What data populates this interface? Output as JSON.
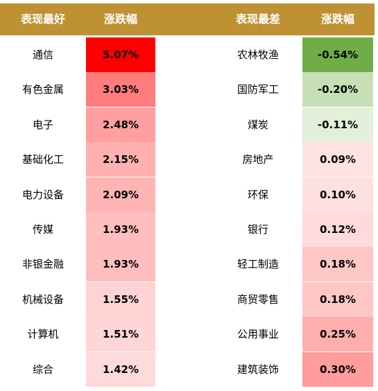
{
  "chart_data": {
    "type": "table",
    "headers": {
      "best_name": "表现最好",
      "best_value": "涨跌幅",
      "worst_name": "表现最差",
      "worst_value": "涨跌幅"
    },
    "best": [
      {
        "name": "通信",
        "value": "5.07%",
        "color": "#ff0000"
      },
      {
        "name": "有色金属",
        "value": "3.03%",
        "color": "#ff7c7c"
      },
      {
        "name": "电子",
        "value": "2.48%",
        "color": "#ff9f9f"
      },
      {
        "name": "基础化工",
        "value": "2.15%",
        "color": "#ffb1b1"
      },
      {
        "name": "电力设备",
        "value": "2.09%",
        "color": "#ffb4b4"
      },
      {
        "name": "传媒",
        "value": "1.93%",
        "color": "#ffbdbd"
      },
      {
        "name": "非银金融",
        "value": "1.93%",
        "color": "#ffbdbd"
      },
      {
        "name": "机械设备",
        "value": "1.55%",
        "color": "#ffd3d3"
      },
      {
        "name": "计算机",
        "value": "1.51%",
        "color": "#ffd5d5"
      },
      {
        "name": "综合",
        "value": "1.42%",
        "color": "#ffdada"
      }
    ],
    "worst": [
      {
        "name": "农林牧渔",
        "value": "-0.54%",
        "color": "#70ad47"
      },
      {
        "name": "国防军工",
        "value": "-0.20%",
        "color": "#c6dfb5"
      },
      {
        "name": "煤炭",
        "value": "-0.11%",
        "color": "#e2efd9"
      },
      {
        "name": "房地产",
        "value": "0.09%",
        "color": "#ffe3e3"
      },
      {
        "name": "环保",
        "value": "0.10%",
        "color": "#ffe0e0"
      },
      {
        "name": "银行",
        "value": "0.12%",
        "color": "#ffdada"
      },
      {
        "name": "轻工制造",
        "value": "0.18%",
        "color": "#ffc6c6"
      },
      {
        "name": "商贸零售",
        "value": "0.18%",
        "color": "#ffc6c6"
      },
      {
        "name": "公用事业",
        "value": "0.25%",
        "color": "#ffaeae"
      },
      {
        "name": "建筑装饰",
        "value": "0.30%",
        "color": "#ff9c9c"
      }
    ]
  }
}
